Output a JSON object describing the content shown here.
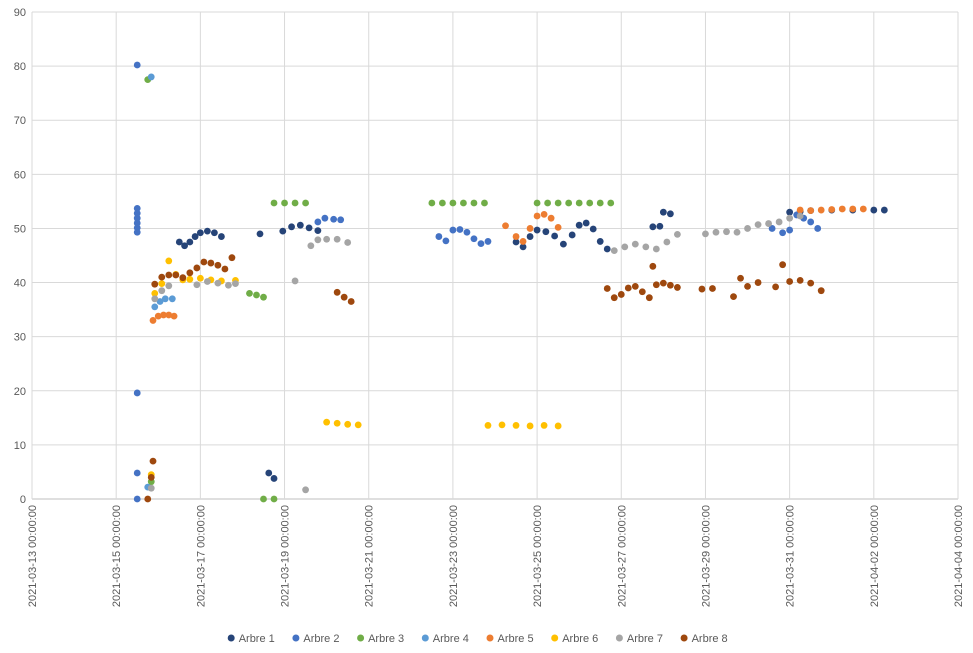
{
  "chart_data": {
    "type": "scatter",
    "title": "",
    "xlabel": "",
    "ylabel": "",
    "xlim": [
      "2021-03-13 00:00:00",
      "2021-04-04 00:00:00"
    ],
    "ylim": [
      0,
      90
    ],
    "y_ticks": [
      0,
      10,
      20,
      30,
      40,
      50,
      60,
      70,
      80,
      90
    ],
    "x_ticks": [
      "2021-03-13 00:00:00",
      "2021-03-15 00:00:00",
      "2021-03-17 00:00:00",
      "2021-03-19 00:00:00",
      "2021-03-21 00:00:00",
      "2021-03-23 00:00:00",
      "2021-03-25 00:00:00",
      "2021-03-27 00:00:00",
      "2021-03-29 00:00:00",
      "2021-03-31 00:00:00",
      "2021-04-02 00:00:00",
      "2021-04-04 00:00:00"
    ],
    "grid": true,
    "legend_position": "bottom",
    "series": [
      {
        "name": "Arbre 1",
        "color": "#264478",
        "points": [
          [
            "2021-03-16 12:00",
            47.5
          ],
          [
            "2021-03-16 15:00",
            46.8
          ],
          [
            "2021-03-16 18:00",
            47.5
          ],
          [
            "2021-03-16 21:00",
            48.5
          ],
          [
            "2021-03-17 00:00",
            49.2
          ],
          [
            "2021-03-17 04:00",
            49.5
          ],
          [
            "2021-03-17 08:00",
            49.2
          ],
          [
            "2021-03-17 12:00",
            48.5
          ],
          [
            "2021-03-18 10:00",
            49.0
          ],
          [
            "2021-03-18 15:00",
            4.8
          ],
          [
            "2021-03-18 18:00",
            3.8
          ],
          [
            "2021-03-18 23:00",
            49.5
          ],
          [
            "2021-03-19 04:00",
            50.3
          ],
          [
            "2021-03-19 09:00",
            50.6
          ],
          [
            "2021-03-19 14:00",
            50.1
          ],
          [
            "2021-03-19 19:00",
            49.6
          ],
          [
            "2021-03-24 12:00",
            47.5
          ],
          [
            "2021-03-24 16:00",
            46.6
          ],
          [
            "2021-03-24 20:00",
            48.5
          ],
          [
            "2021-03-25 00:00",
            49.7
          ],
          [
            "2021-03-25 05:00",
            49.4
          ],
          [
            "2021-03-25 10:00",
            48.6
          ],
          [
            "2021-03-25 15:00",
            47.1
          ],
          [
            "2021-03-25 20:00",
            48.8
          ],
          [
            "2021-03-26 00:00",
            50.6
          ],
          [
            "2021-03-26 04:00",
            51.0
          ],
          [
            "2021-03-26 08:00",
            49.9
          ],
          [
            "2021-03-26 12:00",
            47.6
          ],
          [
            "2021-03-26 16:00",
            46.2
          ],
          [
            "2021-03-27 18:00",
            50.3
          ],
          [
            "2021-03-27 22:00",
            50.4
          ],
          [
            "2021-03-28 00:00",
            53.0
          ],
          [
            "2021-03-28 04:00",
            52.7
          ],
          [
            "2021-03-31 00:00",
            53.0
          ],
          [
            "2021-03-31 06:00",
            53.1
          ],
          [
            "2021-03-31 12:00",
            53.3
          ],
          [
            "2021-04-01 00:00",
            53.4
          ],
          [
            "2021-04-01 12:00",
            53.4
          ],
          [
            "2021-04-02 00:00",
            53.4
          ],
          [
            "2021-04-02 06:00",
            53.4
          ]
        ]
      },
      {
        "name": "Arbre 2",
        "color": "#4472C4",
        "points": [
          [
            "2021-03-15 12:00",
            80.2
          ],
          [
            "2021-03-15 12:00",
            53.7
          ],
          [
            "2021-03-15 12:00",
            52.8
          ],
          [
            "2021-03-15 12:00",
            51.9
          ],
          [
            "2021-03-15 12:00",
            51.0
          ],
          [
            "2021-03-15 12:00",
            50.1
          ],
          [
            "2021-03-15 12:00",
            49.3
          ],
          [
            "2021-03-15 12:00",
            19.6
          ],
          [
            "2021-03-15 12:00",
            4.8
          ],
          [
            "2021-03-15 12:00",
            0.0
          ],
          [
            "2021-03-19 19:00",
            51.2
          ],
          [
            "2021-03-19 23:00",
            51.9
          ],
          [
            "2021-03-20 04:00",
            51.7
          ],
          [
            "2021-03-20 08:00",
            51.6
          ],
          [
            "2021-03-22 16:00",
            48.5
          ],
          [
            "2021-03-22 20:00",
            47.7
          ],
          [
            "2021-03-23 00:00",
            49.7
          ],
          [
            "2021-03-23 04:00",
            49.8
          ],
          [
            "2021-03-23 08:00",
            49.3
          ],
          [
            "2021-03-23 12:00",
            48.1
          ],
          [
            "2021-03-23 16:00",
            47.2
          ],
          [
            "2021-03-23 20:00",
            47.6
          ],
          [
            "2021-03-30 14:00",
            50.0
          ],
          [
            "2021-03-30 20:00",
            49.2
          ],
          [
            "2021-03-31 00:00",
            49.7
          ],
          [
            "2021-03-31 04:00",
            52.5
          ],
          [
            "2021-03-31 08:00",
            51.9
          ],
          [
            "2021-03-31 12:00",
            51.2
          ],
          [
            "2021-03-31 16:00",
            50.0
          ]
        ]
      },
      {
        "name": "Arbre 3",
        "color": "#70AD47",
        "points": [
          [
            "2021-03-15 18:00",
            77.5
          ],
          [
            "2021-03-15 20:00",
            3.2
          ],
          [
            "2021-03-18 04:00",
            38.0
          ],
          [
            "2021-03-18 08:00",
            37.7
          ],
          [
            "2021-03-18 12:00",
            37.3
          ],
          [
            "2021-03-18 12:00",
            0.0
          ],
          [
            "2021-03-18 18:00",
            0.0
          ],
          [
            "2021-03-18 18:00",
            54.7
          ],
          [
            "2021-03-19 00:00",
            54.7
          ],
          [
            "2021-03-19 06:00",
            54.7
          ],
          [
            "2021-03-19 12:00",
            54.7
          ],
          [
            "2021-03-22 12:00",
            54.7
          ],
          [
            "2021-03-22 18:00",
            54.7
          ],
          [
            "2021-03-23 00:00",
            54.7
          ],
          [
            "2021-03-23 06:00",
            54.7
          ],
          [
            "2021-03-23 12:00",
            54.7
          ],
          [
            "2021-03-23 18:00",
            54.7
          ],
          [
            "2021-03-25 00:00",
            54.7
          ],
          [
            "2021-03-25 06:00",
            54.7
          ],
          [
            "2021-03-25 12:00",
            54.7
          ],
          [
            "2021-03-25 18:00",
            54.7
          ],
          [
            "2021-03-26 00:00",
            54.7
          ],
          [
            "2021-03-26 06:00",
            54.7
          ],
          [
            "2021-03-26 12:00",
            54.7
          ],
          [
            "2021-03-26 18:00",
            54.7
          ]
        ]
      },
      {
        "name": "Arbre 4",
        "color": "#5B9BD5",
        "points": [
          [
            "2021-03-15 20:00",
            78.0
          ],
          [
            "2021-03-15 18:00",
            2.2
          ],
          [
            "2021-03-15 22:00",
            35.5
          ],
          [
            "2021-03-16 01:00",
            36.5
          ],
          [
            "2021-03-16 04:00",
            37.0
          ],
          [
            "2021-03-16 08:00",
            37.0
          ]
        ]
      },
      {
        "name": "Arbre 5",
        "color": "#ED7D31",
        "points": [
          [
            "2021-03-15 21:00",
            33.0
          ],
          [
            "2021-03-16 00:00",
            33.8
          ],
          [
            "2021-03-16 03:00",
            34.0
          ],
          [
            "2021-03-16 06:00",
            34.0
          ],
          [
            "2021-03-16 09:00",
            33.8
          ],
          [
            "2021-03-24 06:00",
            50.5
          ],
          [
            "2021-03-24 12:00",
            48.5
          ],
          [
            "2021-03-24 16:00",
            47.6
          ],
          [
            "2021-03-24 20:00",
            50.0
          ],
          [
            "2021-03-25 00:00",
            52.3
          ],
          [
            "2021-03-25 04:00",
            52.6
          ],
          [
            "2021-03-25 08:00",
            51.9
          ],
          [
            "2021-03-25 12:00",
            50.2
          ],
          [
            "2021-03-31 06:00",
            53.4
          ],
          [
            "2021-03-31 12:00",
            53.3
          ],
          [
            "2021-03-31 18:00",
            53.4
          ],
          [
            "2021-04-01 00:00",
            53.5
          ],
          [
            "2021-04-01 06:00",
            53.6
          ],
          [
            "2021-04-01 12:00",
            53.6
          ],
          [
            "2021-04-01 18:00",
            53.6
          ]
        ]
      },
      {
        "name": "Arbre 6",
        "color": "#FFC000",
        "points": [
          [
            "2021-03-15 20:00",
            4.5
          ],
          [
            "2021-03-15 22:00",
            38.0
          ],
          [
            "2021-03-16 02:00",
            39.8
          ],
          [
            "2021-03-16 06:00",
            44.0
          ],
          [
            "2021-03-16 10:00",
            41.5
          ],
          [
            "2021-03-16 14:00",
            40.5
          ],
          [
            "2021-03-16 18:00",
            40.6
          ],
          [
            "2021-03-17 00:00",
            40.8
          ],
          [
            "2021-03-17 06:00",
            40.5
          ],
          [
            "2021-03-17 12:00",
            40.3
          ],
          [
            "2021-03-17 20:00",
            40.4
          ],
          [
            "2021-03-20 00:00",
            14.2
          ],
          [
            "2021-03-20 06:00",
            14.0
          ],
          [
            "2021-03-20 12:00",
            13.8
          ],
          [
            "2021-03-20 18:00",
            13.7
          ],
          [
            "2021-03-23 20:00",
            13.6
          ],
          [
            "2021-03-24 04:00",
            13.7
          ],
          [
            "2021-03-24 12:00",
            13.6
          ],
          [
            "2021-03-24 20:00",
            13.5
          ],
          [
            "2021-03-25 04:00",
            13.6
          ],
          [
            "2021-03-25 12:00",
            13.5
          ]
        ]
      },
      {
        "name": "Arbre 7",
        "color": "#A5A5A5",
        "points": [
          [
            "2021-03-15 20:00",
            2.0
          ],
          [
            "2021-03-15 22:00",
            37.0
          ],
          [
            "2021-03-16 02:00",
            38.5
          ],
          [
            "2021-03-16 06:00",
            39.4
          ],
          [
            "2021-03-16 22:00",
            39.6
          ],
          [
            "2021-03-17 04:00",
            40.2
          ],
          [
            "2021-03-17 10:00",
            39.9
          ],
          [
            "2021-03-17 16:00",
            39.5
          ],
          [
            "2021-03-17 20:00",
            39.8
          ],
          [
            "2021-03-19 06:00",
            40.3
          ],
          [
            "2021-03-19 12:00",
            1.7
          ],
          [
            "2021-03-19 15:00",
            46.8
          ],
          [
            "2021-03-19 19:00",
            47.9
          ],
          [
            "2021-03-20 00:00",
            48.0
          ],
          [
            "2021-03-20 06:00",
            48.0
          ],
          [
            "2021-03-20 12:00",
            47.4
          ],
          [
            "2021-03-26 20:00",
            45.9
          ],
          [
            "2021-03-27 02:00",
            46.6
          ],
          [
            "2021-03-27 08:00",
            47.1
          ],
          [
            "2021-03-27 14:00",
            46.6
          ],
          [
            "2021-03-27 20:00",
            46.2
          ],
          [
            "2021-03-28 02:00",
            47.5
          ],
          [
            "2021-03-28 08:00",
            48.9
          ],
          [
            "2021-03-29 00:00",
            49.0
          ],
          [
            "2021-03-29 06:00",
            49.3
          ],
          [
            "2021-03-29 12:00",
            49.4
          ],
          [
            "2021-03-29 18:00",
            49.3
          ],
          [
            "2021-03-30 00:00",
            50.0
          ],
          [
            "2021-03-30 06:00",
            50.7
          ],
          [
            "2021-03-30 12:00",
            50.9
          ],
          [
            "2021-03-30 18:00",
            51.2
          ],
          [
            "2021-03-31 00:00",
            51.9
          ],
          [
            "2021-03-31 06:00",
            52.3
          ]
        ]
      },
      {
        "name": "Arbre 8",
        "color": "#9E480E",
        "points": [
          [
            "2021-03-15 18:00",
            0.0
          ],
          [
            "2021-03-15 20:00",
            4.0
          ],
          [
            "2021-03-15 21:00",
            7.0
          ],
          [
            "2021-03-15 22:00",
            39.7
          ],
          [
            "2021-03-16 02:00",
            41.0
          ],
          [
            "2021-03-16 06:00",
            41.4
          ],
          [
            "2021-03-16 10:00",
            41.4
          ],
          [
            "2021-03-16 14:00",
            40.9
          ],
          [
            "2021-03-16 18:00",
            41.8
          ],
          [
            "2021-03-16 22:00",
            42.7
          ],
          [
            "2021-03-17 02:00",
            43.8
          ],
          [
            "2021-03-17 06:00",
            43.6
          ],
          [
            "2021-03-17 10:00",
            43.2
          ],
          [
            "2021-03-17 14:00",
            42.5
          ],
          [
            "2021-03-17 18:00",
            44.6
          ],
          [
            "2021-03-20 06:00",
            38.2
          ],
          [
            "2021-03-20 10:00",
            37.3
          ],
          [
            "2021-03-20 14:00",
            36.5
          ],
          [
            "2021-03-26 16:00",
            38.9
          ],
          [
            "2021-03-26 20:00",
            37.2
          ],
          [
            "2021-03-27 00:00",
            37.8
          ],
          [
            "2021-03-27 04:00",
            39.0
          ],
          [
            "2021-03-27 08:00",
            39.3
          ],
          [
            "2021-03-27 12:00",
            38.3
          ],
          [
            "2021-03-27 16:00",
            37.2
          ],
          [
            "2021-03-27 18:00",
            43.0
          ],
          [
            "2021-03-27 20:00",
            39.6
          ],
          [
            "2021-03-28 00:00",
            39.9
          ],
          [
            "2021-03-28 04:00",
            39.5
          ],
          [
            "2021-03-28 08:00",
            39.1
          ],
          [
            "2021-03-28 22:00",
            38.8
          ],
          [
            "2021-03-29 04:00",
            38.9
          ],
          [
            "2021-03-29 16:00",
            37.4
          ],
          [
            "2021-03-29 20:00",
            40.8
          ],
          [
            "2021-03-30 00:00",
            39.3
          ],
          [
            "2021-03-30 06:00",
            40.0
          ],
          [
            "2021-03-30 16:00",
            39.2
          ],
          [
            "2021-03-30 20:00",
            43.3
          ],
          [
            "2021-03-31 00:00",
            40.2
          ],
          [
            "2021-03-31 06:00",
            40.4
          ],
          [
            "2021-03-31 12:00",
            39.9
          ],
          [
            "2021-03-31 18:00",
            38.5
          ]
        ]
      }
    ]
  }
}
